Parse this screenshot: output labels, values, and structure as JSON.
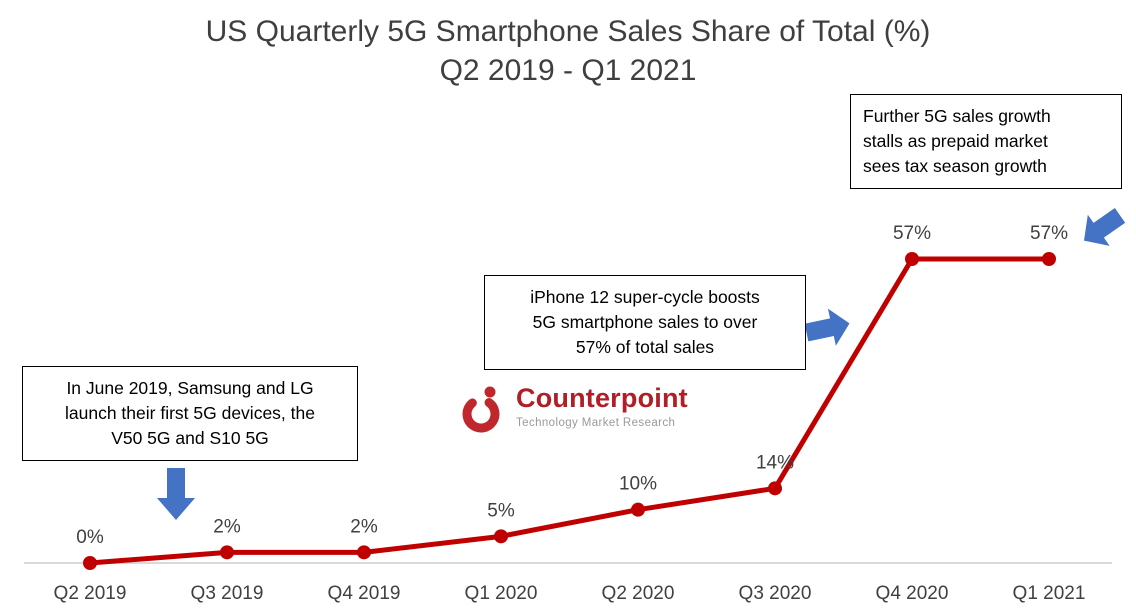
{
  "title": {
    "line1": "US Quarterly 5G Smartphone Sales Share of Total (%)",
    "line2": "Q2 2019 - Q1 2021"
  },
  "chart_data": {
    "type": "line",
    "title": "US Quarterly 5G Smartphone Sales Share of Total (%) Q2 2019 - Q1 2021",
    "categories": [
      "Q2 2019",
      "Q3 2019",
      "Q4 2019",
      "Q1 2020",
      "Q2 2020",
      "Q3 2020",
      "Q4 2020",
      "Q1 2021"
    ],
    "values": [
      0,
      2,
      2,
      5,
      10,
      14,
      57,
      57
    ],
    "data_labels": [
      "0%",
      "2%",
      "2%",
      "5%",
      "10%",
      "14%",
      "57%",
      "57%"
    ],
    "xlabel": "",
    "ylabel": "",
    "ylim": [
      0,
      60
    ],
    "grid": false,
    "legend": "none",
    "line_color": "#C00000",
    "marker": "circle"
  },
  "annotations": [
    {
      "text": "In June 2019, Samsung and LG\nlaunch their first 5G devices, the\nV50 5G and S10 5G"
    },
    {
      "text": "iPhone 12 super-cycle boosts\n5G smartphone sales to over\n57% of total sales"
    },
    {
      "text": "Further 5G sales growth\nstalls as prepaid market\nsees tax season growth"
    }
  ],
  "logo": {
    "name": "Counterpoint",
    "tagline": "Technology Market Research"
  },
  "colors": {
    "line": "#C00000",
    "arrow": "#4472C4",
    "text": "#404040",
    "axis": "#D9D9D9",
    "brand_red": "#B01E28"
  }
}
